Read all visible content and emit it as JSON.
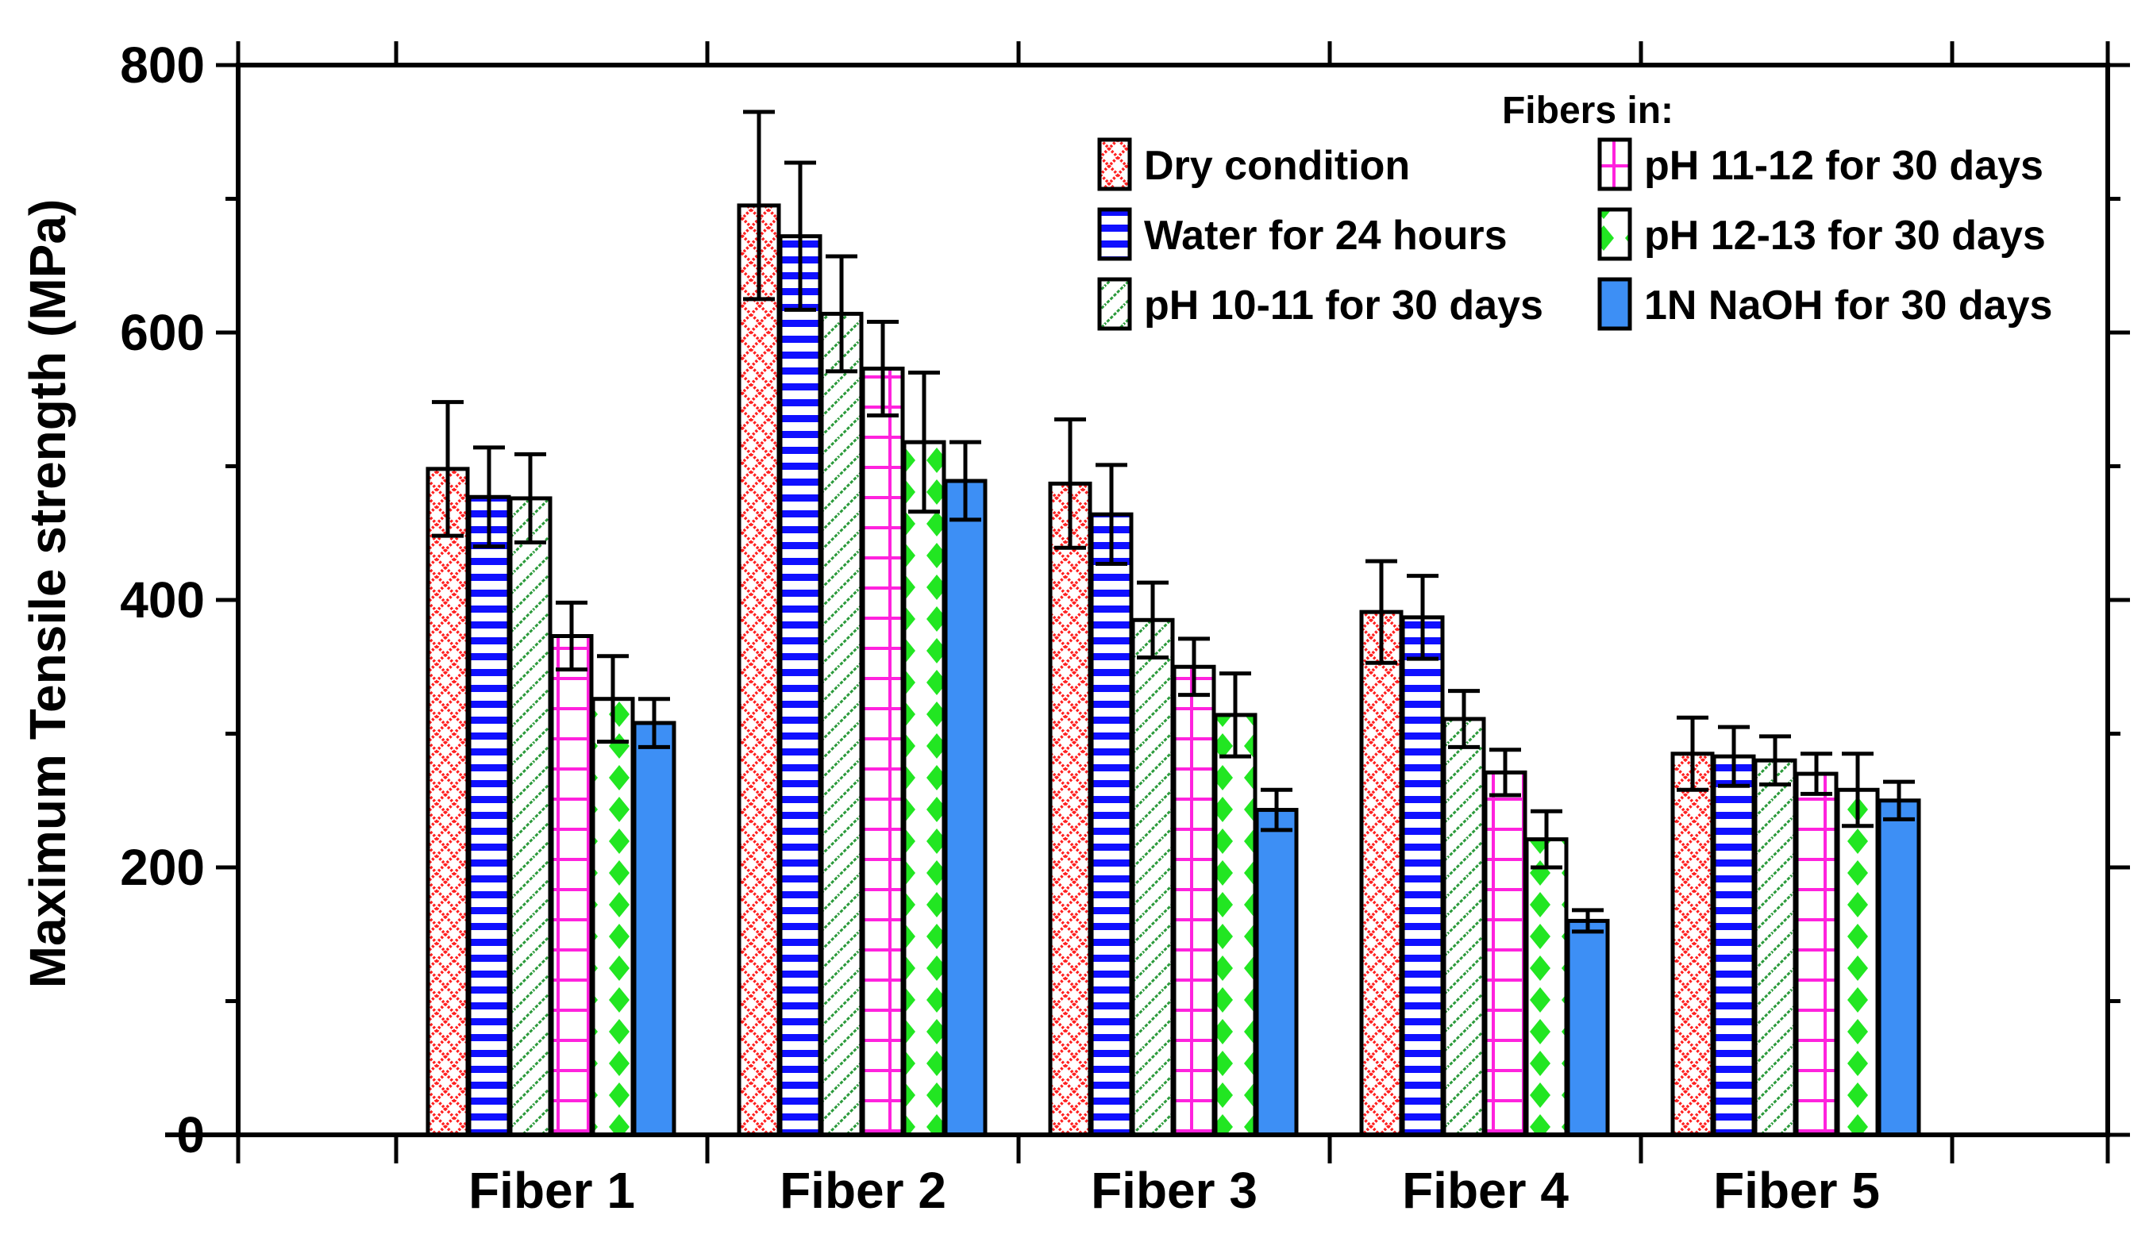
{
  "chart_data": {
    "type": "bar",
    "title": "",
    "xlabel": "",
    "ylabel": "Maximum Tensile strength (MPa)",
    "ylim": [
      0,
      800
    ],
    "yticks": [
      0,
      200,
      400,
      600,
      800
    ],
    "categories": [
      "Fiber 1",
      "Fiber 2",
      "Fiber 3",
      "Fiber 4",
      "Fiber 5"
    ],
    "legend_title": "Fibers in:",
    "legend_position": "top-right",
    "series": [
      {
        "name": "Dry condition",
        "pattern": "crosshatch-dots",
        "color": "#ff2020",
        "values": [
          498,
          695,
          487,
          391,
          285
        ],
        "errors": [
          50,
          70,
          48,
          38,
          27
        ]
      },
      {
        "name": "Water for 24 hours",
        "pattern": "horizontal-stripes",
        "color": "#1010ff",
        "values": [
          477,
          672,
          464,
          387,
          283
        ],
        "errors": [
          37,
          55,
          37,
          31,
          22
        ]
      },
      {
        "name": "pH 10-11 for 30 days",
        "pattern": "diagonal-lines",
        "color": "#2a9a3a",
        "values": [
          476,
          614,
          385,
          311,
          280
        ],
        "errors": [
          33,
          43,
          28,
          21,
          18
        ]
      },
      {
        "name": "pH 11-12 for 30 days",
        "pattern": "grid",
        "color": "#ff22dd",
        "values": [
          373,
          573,
          350,
          271,
          270
        ],
        "errors": [
          25,
          35,
          21,
          17,
          15
        ]
      },
      {
        "name": "pH 12-13 for 30 days",
        "pattern": "diamonds",
        "color": "#22e622",
        "values": [
          326,
          518,
          314,
          221,
          258
        ],
        "errors": [
          32,
          52,
          31,
          21,
          27
        ]
      },
      {
        "name": "1N NaOH for 30 days",
        "pattern": "solid",
        "color": "#3d8ff5",
        "values": [
          308,
          489,
          243,
          160,
          250
        ],
        "errors": [
          18,
          29,
          15,
          8,
          14
        ]
      }
    ]
  }
}
